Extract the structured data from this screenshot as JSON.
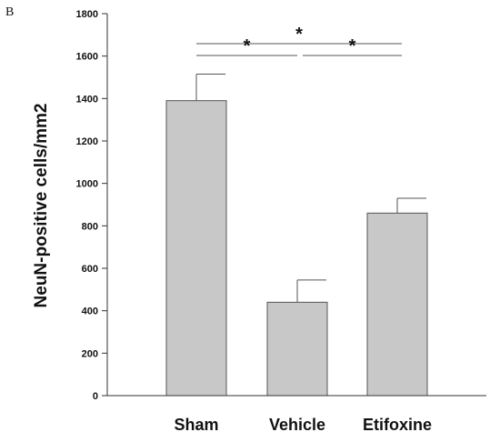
{
  "panel_label": "B",
  "chart_data": {
    "type": "bar",
    "categories": [
      "Sham",
      "Vehicle",
      "Etifoxine"
    ],
    "values": [
      1390,
      440,
      860
    ],
    "errors": [
      125,
      105,
      70
    ],
    "ylabel": "NeuN-positive cells/mm2",
    "ylim": [
      0,
      1800
    ],
    "yticks": [
      0,
      200,
      400,
      600,
      800,
      1000,
      1200,
      1400,
      1600,
      1800
    ],
    "grid": false,
    "bar_color": "#c8c8c8",
    "bar_edge_color": "#555555",
    "significance": [
      {
        "from": 0,
        "to": 2,
        "label": "*"
      },
      {
        "from": 0,
        "to": 1,
        "label": "*"
      },
      {
        "from": 1,
        "to": 2,
        "label": "*"
      }
    ]
  }
}
